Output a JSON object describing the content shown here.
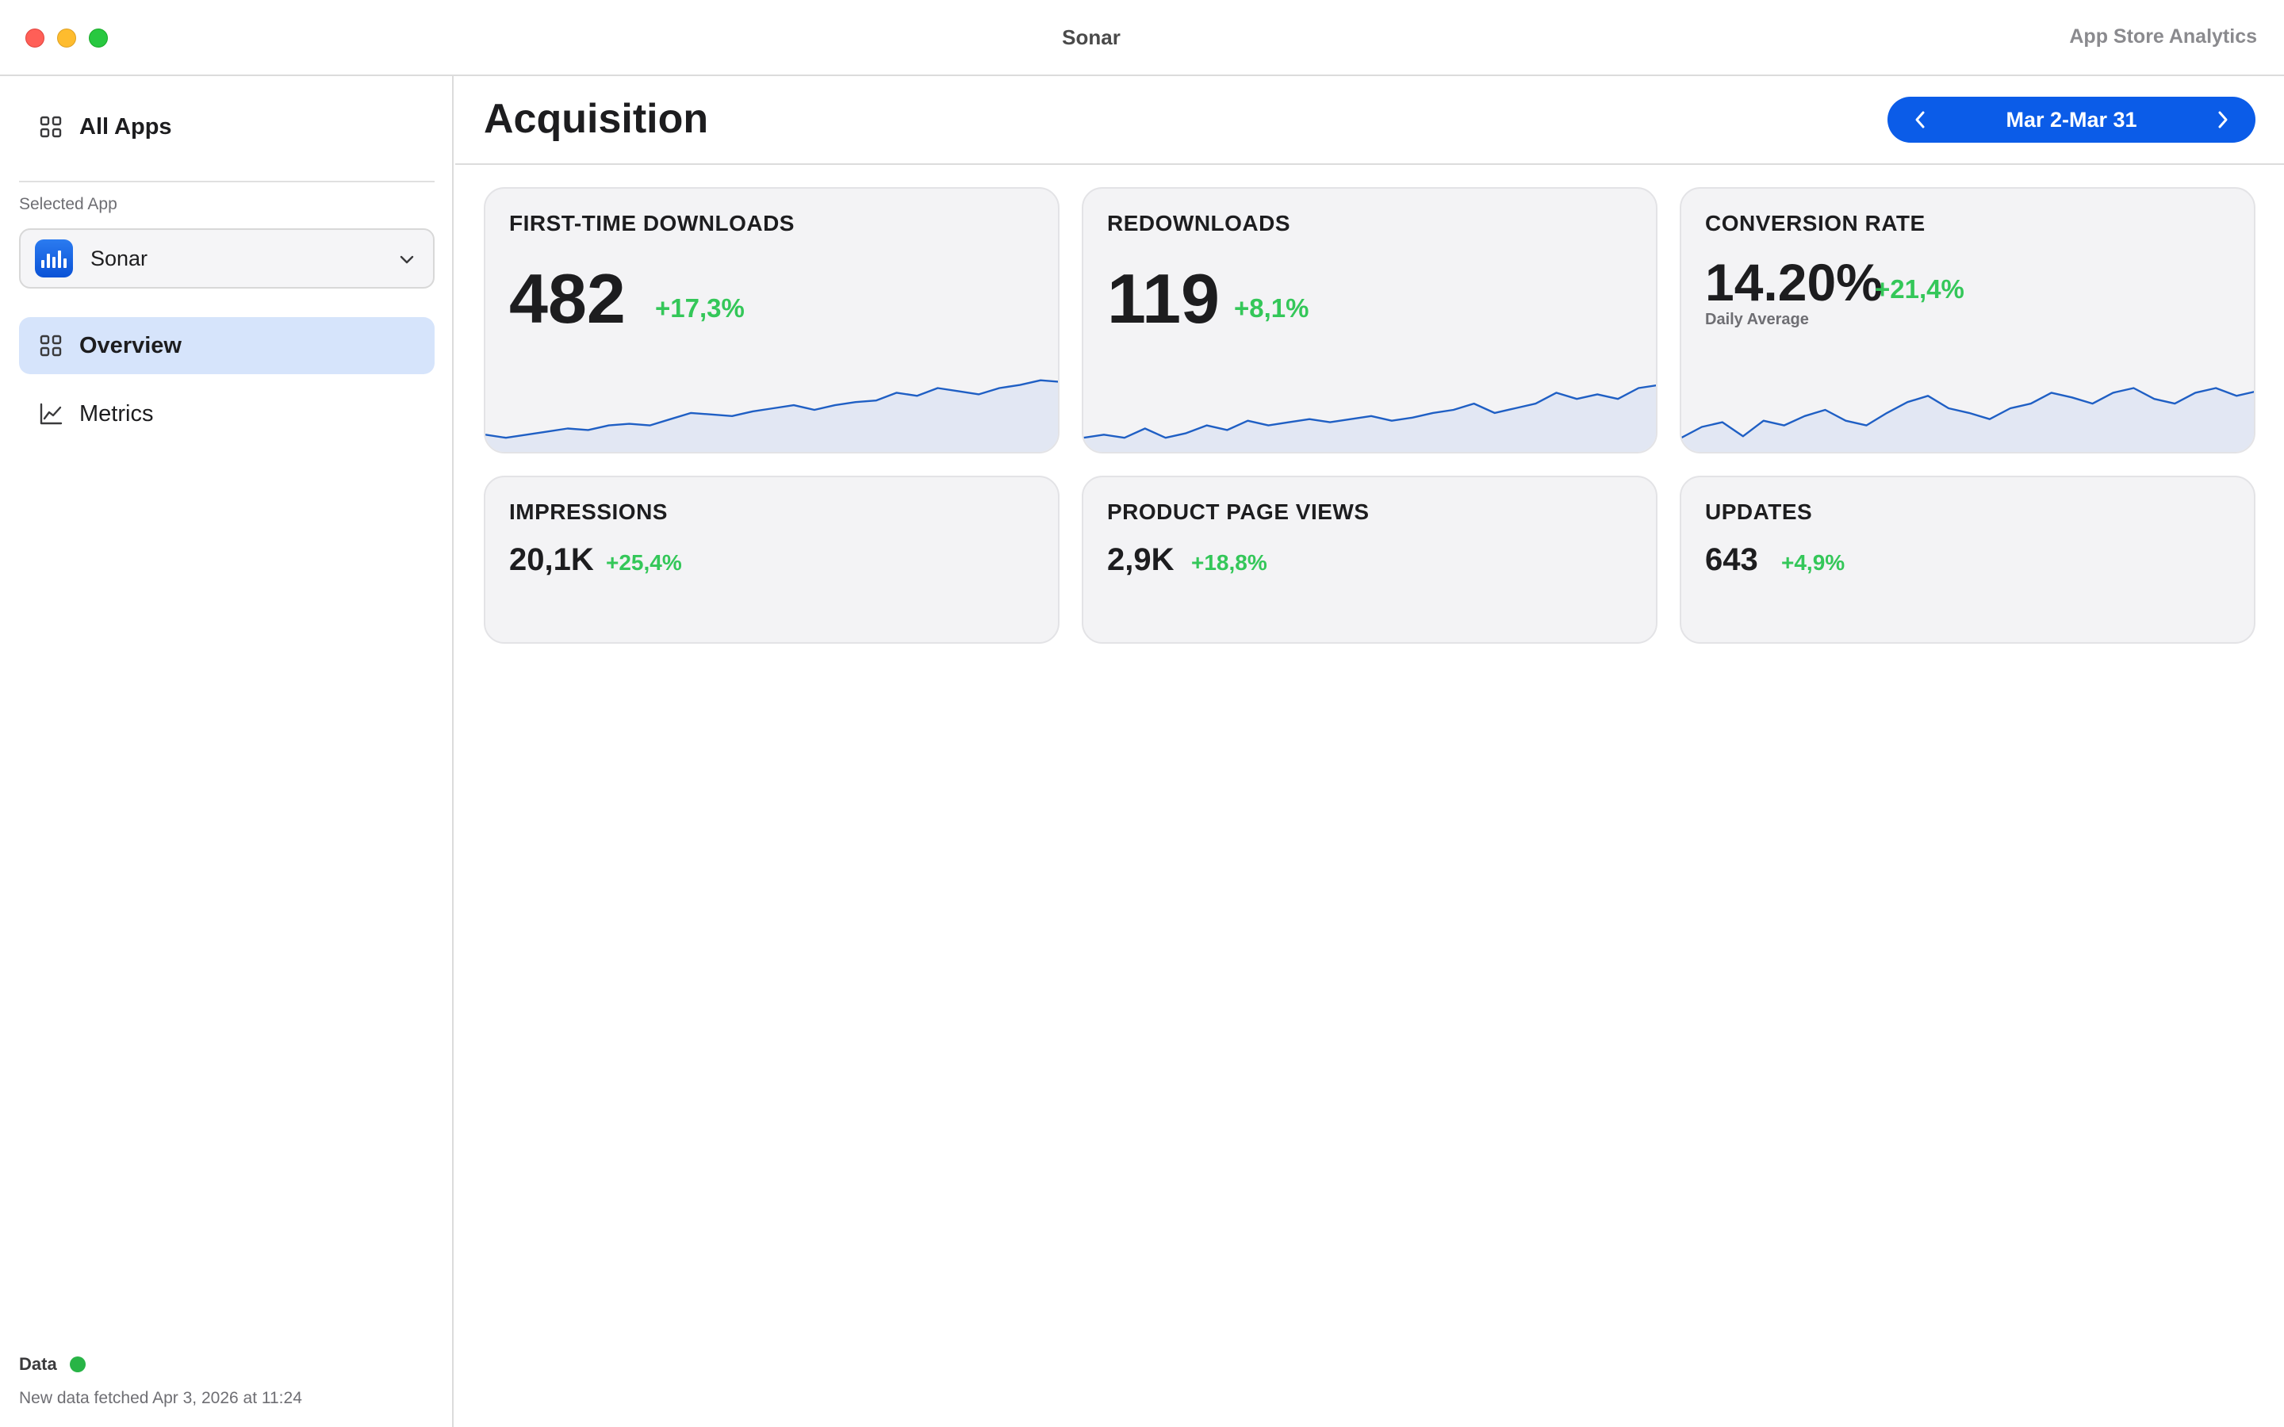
{
  "window": {
    "title": "Sonar",
    "subtitle": "App Store Analytics"
  },
  "sidebar": {
    "all_apps": "All Apps",
    "selected_app_label": "Selected App",
    "selected_app": "Sonar",
    "items": [
      {
        "label": "Overview",
        "icon": "grid-icon",
        "active": true
      },
      {
        "label": "Metrics",
        "icon": "chart-line-icon",
        "active": false
      }
    ],
    "status": {
      "label": "Data",
      "state_color": "#28b446",
      "fetched": "New data fetched Apr 3, 2026 at 11:24"
    }
  },
  "main": {
    "title": "Acquisition",
    "date_range": "Mar 2-Mar 31",
    "accent": "#0b5ce8",
    "positive_color": "#34c759",
    "cards": [
      {
        "title": "FIRST-TIME DOWNLOADS",
        "value": "482",
        "change": "+17,3%",
        "note": ""
      },
      {
        "title": "REDOWNLOADS",
        "value": "119",
        "change": "+8,1%",
        "note": ""
      },
      {
        "title": "CONVERSION RATE",
        "value": "14.20%",
        "change": "+21,4%",
        "note": "Daily Average"
      },
      {
        "title": "IMPRESSIONS",
        "value": "20,1K",
        "change": "+25,4%"
      },
      {
        "title": "PRODUCT PAGE VIEWS",
        "value": "2,9K",
        "change": "+18,8%"
      },
      {
        "title": "UPDATES",
        "value": "643",
        "change": "+4,9%"
      }
    ]
  },
  "chart_data": [
    {
      "type": "area",
      "title": "FIRST-TIME DOWNLOADS",
      "series": [
        {
          "values": [
            8,
            6,
            8,
            10,
            12,
            11,
            14,
            15,
            14,
            18,
            22,
            21,
            20,
            23,
            25,
            27,
            24,
            27,
            29,
            30,
            35,
            33,
            38,
            36,
            34,
            38,
            40,
            43,
            42
          ]
        }
      ],
      "ylim": [
        0,
        50
      ]
    },
    {
      "type": "area",
      "title": "REDOWNLOADS",
      "series": [
        {
          "values": [
            6,
            8,
            6,
            12,
            6,
            9,
            14,
            11,
            17,
            14,
            16,
            18,
            16,
            18,
            20,
            17,
            19,
            22,
            24,
            28,
            22,
            25,
            28,
            35,
            31,
            34,
            31,
            38,
            40
          ]
        }
      ],
      "ylim": [
        0,
        50
      ]
    },
    {
      "type": "area",
      "title": "CONVERSION RATE",
      "series": [
        {
          "values": [
            6,
            13,
            16,
            7,
            17,
            14,
            20,
            24,
            17,
            14,
            22,
            29,
            33,
            25,
            22,
            18,
            25,
            28,
            35,
            32,
            28,
            35,
            38,
            31,
            28,
            35,
            38,
            33,
            36
          ]
        }
      ],
      "ylim": [
        0,
        50
      ]
    }
  ]
}
